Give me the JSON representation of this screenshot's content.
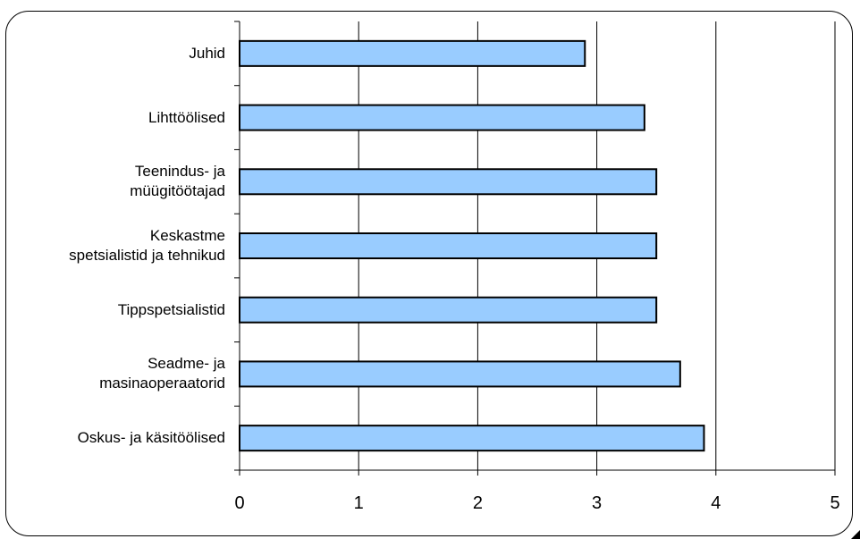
{
  "chart_data": {
    "type": "bar",
    "orientation": "horizontal",
    "categories": [
      "Juhid",
      "Lihttöölised",
      "Teenindus- ja müügitöötajad",
      "Keskastme spetsialistid ja tehnikud",
      "Tippspetsialistid",
      "Seadme- ja masinaoperaatorid",
      "Oskus- ja käsitöölised"
    ],
    "category_lines": [
      [
        "Juhid"
      ],
      [
        "Lihttöölised"
      ],
      [
        "Teenindus- ja",
        "müügitöötajad"
      ],
      [
        "Keskastme",
        "spetsialistid ja tehnikud"
      ],
      [
        "Tippspetsialistid"
      ],
      [
        "Seadme- ja",
        "masinaoperaatorid"
      ],
      [
        "Oskus- ja käsitöölised"
      ]
    ],
    "values": [
      2.9,
      3.4,
      3.5,
      3.5,
      3.5,
      3.7,
      3.9
    ],
    "xlim": [
      0,
      5
    ],
    "xticks": [
      "0",
      "1",
      "2",
      "3",
      "4",
      "5"
    ],
    "grid": "vertical",
    "legend": "none",
    "colors": {
      "bar_fill": "#99CCFF",
      "bar_stroke": "#000000",
      "grid": "#000000"
    }
  }
}
